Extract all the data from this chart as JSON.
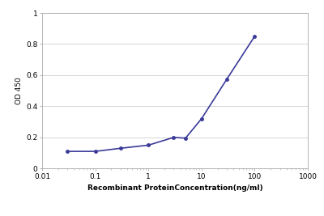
{
  "x": [
    0.03,
    0.1,
    0.3,
    1.0,
    3.0,
    5.0,
    10.0,
    30.0,
    100.0
  ],
  "y": [
    0.11,
    0.11,
    0.13,
    0.15,
    0.2,
    0.195,
    0.32,
    0.575,
    0.85
  ],
  "line_color": "#3a3a99",
  "marker_color": "#3a3a99",
  "marker_style": "o",
  "marker_size": 3,
  "line_width": 1.2,
  "xlabel": "Recombinant ProteinConcentration(ng/ml)",
  "ylabel": "OD 450",
  "xlim": [
    0.01,
    1000
  ],
  "ylim": [
    0,
    1
  ],
  "yticks": [
    0,
    0.2,
    0.4,
    0.6,
    0.8,
    1
  ],
  "xticks": [
    0.01,
    0.1,
    1,
    10,
    100,
    1000
  ],
  "xtick_labels": [
    "0.01",
    "0.1",
    "1",
    "10",
    "100",
    "1000"
  ],
  "grid_color": "#d0d0d0",
  "background_color": "#ffffff",
  "font_size_label": 6.5,
  "font_size_tick": 6.5,
  "xlabel_fontsize": 6.5,
  "ylabel_fontsize": 6.5
}
